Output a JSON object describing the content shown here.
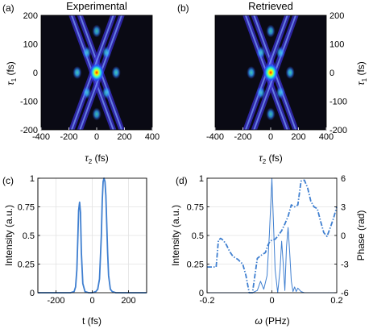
{
  "chart_data": [
    {
      "panel": "(a)",
      "type": "heatmap",
      "title": "Experimental",
      "xlabel": "τ2 (fs)",
      "ylabel": "τ1 (fs)",
      "xlim": [
        -400,
        400
      ],
      "ylim": [
        -200,
        200
      ],
      "xticks": [
        "-400",
        "-200",
        "0",
        "200",
        "400"
      ],
      "yticks": [
        "200",
        "100",
        "0",
        "-100",
        "-200"
      ],
      "spots": [
        {
          "x": 0,
          "y": 0,
          "level": 1.0
        },
        {
          "x": -140,
          "y": 0,
          "level": 0.6
        },
        {
          "x": 140,
          "y": 0,
          "level": 0.6
        },
        {
          "x": 0,
          "y": 145,
          "level": 0.5
        },
        {
          "x": 0,
          "y": -145,
          "level": 0.5
        },
        {
          "x": -70,
          "y": 70,
          "level": 0.45
        },
        {
          "x": 70,
          "y": 70,
          "level": 0.45
        },
        {
          "x": -70,
          "y": -70,
          "level": 0.45
        },
        {
          "x": 70,
          "y": -70,
          "level": 0.45
        }
      ]
    },
    {
      "panel": "(b)",
      "type": "heatmap",
      "title": "Retrieved",
      "xlabel": "τ2 (fs)",
      "ylabel": "τ1 (fs)",
      "xlim": [
        -400,
        400
      ],
      "ylim": [
        -200,
        200
      ],
      "xticks": [
        "-400",
        "-200",
        "0",
        "200",
        "400"
      ],
      "yticks": [
        "200",
        "100",
        "0",
        "-100",
        "-200"
      ],
      "spots": [
        {
          "x": 0,
          "y": 0,
          "level": 1.0
        },
        {
          "x": -140,
          "y": 0,
          "level": 0.6
        },
        {
          "x": 140,
          "y": 0,
          "level": 0.6
        },
        {
          "x": 0,
          "y": 145,
          "level": 0.5
        },
        {
          "x": 0,
          "y": -145,
          "level": 0.5
        },
        {
          "x": -70,
          "y": 70,
          "level": 0.45
        },
        {
          "x": 70,
          "y": 70,
          "level": 0.45
        },
        {
          "x": -70,
          "y": -70,
          "level": 0.45
        },
        {
          "x": 70,
          "y": -70,
          "level": 0.45
        }
      ]
    },
    {
      "panel": "(c)",
      "type": "line",
      "xlabel": "t (fs)",
      "ylabel": "Intensity (a.u.)",
      "xlim": [
        -300,
        300
      ],
      "ylim": [
        0,
        1
      ],
      "xticks": [
        "-200",
        "0",
        "200"
      ],
      "yticks": [
        "1",
        "0.75",
        "0.5",
        "0.25",
        "0"
      ],
      "grid": true,
      "series": [
        {
          "x": [
            -300,
            -120,
            -100,
            -92,
            -85,
            -80,
            -75,
            -70,
            -65,
            -60,
            -52,
            -40,
            -20,
            0,
            20,
            30,
            40,
            50,
            55,
            60,
            65,
            70,
            75,
            80,
            85,
            90,
            100,
            110,
            130,
            300
          ],
          "y": [
            0,
            0,
            0.01,
            0.05,
            0.2,
            0.45,
            0.72,
            0.79,
            0.7,
            0.35,
            0.08,
            0.01,
            0,
            0,
            0.01,
            0.03,
            0.12,
            0.5,
            0.8,
            0.97,
            1.0,
            0.97,
            0.85,
            0.6,
            0.35,
            0.15,
            0.03,
            0.01,
            0,
            0
          ]
        }
      ]
    },
    {
      "panel": "(d)",
      "type": "line",
      "xlabel": "ω (PHz)",
      "ylabel": "Intensity (a.u.)",
      "ylabel_right": "Phase (rad)",
      "xlim": [
        -0.2,
        0.2
      ],
      "ylim": [
        0,
        1
      ],
      "ylim_right": [
        -6,
        6
      ],
      "xticks": [
        "-0.2",
        "0",
        "0.2"
      ],
      "yticks": [
        "1",
        "0.75",
        "0.5",
        "0.25",
        "0"
      ],
      "yticks_right": [
        "6",
        "3",
        "0",
        "-3",
        "-6"
      ],
      "grid": true,
      "series": [
        {
          "axis": "left",
          "style": "solid",
          "x": [
            -0.2,
            -0.06,
            -0.045,
            -0.035,
            -0.025,
            -0.015,
            -0.008,
            0,
            0.005,
            0.01,
            0.018,
            0.025,
            0.03,
            0.035,
            0.04,
            0.045,
            0.05,
            0.055,
            0.06,
            0.065,
            0.07,
            0.075,
            0.08,
            0.09,
            0.1,
            0.2
          ],
          "y": [
            0,
            0,
            0.02,
            0.1,
            0.03,
            0.15,
            0.5,
            1.0,
            0.6,
            0.2,
            0.0,
            0.2,
            0.45,
            0.25,
            0.02,
            0.4,
            0.57,
            0.35,
            0.1,
            0.01,
            0.05,
            0.01,
            0.04,
            0.01,
            0,
            0
          ]
        },
        {
          "axis": "right",
          "style": "dashdot",
          "x": [
            -0.2,
            -0.172,
            -0.165,
            -0.158,
            -0.15,
            -0.14,
            -0.13,
            -0.12,
            -0.105,
            -0.09,
            -0.08,
            -0.07,
            -0.06,
            -0.045,
            -0.03,
            -0.02,
            -0.012,
            -0.006,
            0,
            0.01,
            0.02,
            0.03,
            0.04,
            0.05,
            0.06,
            0.07,
            0.08,
            0.09,
            0.1,
            0.11,
            0.12,
            0.13,
            0.14,
            0.15,
            0.16,
            0.17,
            0.18,
            0.19,
            0.2
          ],
          "y": [
            -3.3,
            -3.3,
            -0.5,
            -0.3,
            -0.5,
            -1.0,
            -1.7,
            -2.2,
            -2.5,
            -3.0,
            -4.2,
            -6.0,
            -6.0,
            -2.4,
            -2.0,
            -1.8,
            -1.0,
            -0.6,
            -0.5,
            -0.4,
            0.0,
            0.5,
            1.2,
            2.0,
            3.2,
            3.0,
            3.2,
            5.7,
            5.8,
            5.0,
            3.6,
            3.0,
            2.8,
            1.5,
            0.3,
            -0.1,
            0.8,
            1.8,
            3.0
          ]
        }
      ]
    }
  ]
}
